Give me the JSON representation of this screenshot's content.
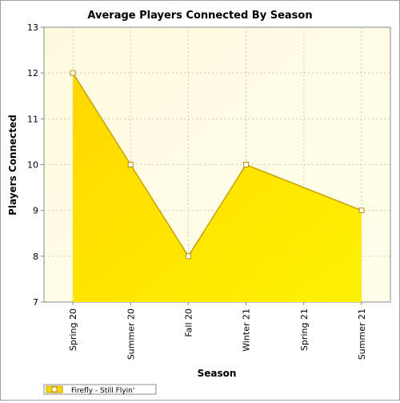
{
  "chart_data": {
    "type": "area",
    "title": "Average Players Connected By Season",
    "xlabel": "Season",
    "ylabel": "Players Connected",
    "categories": [
      "Spring 20",
      "Summer 20",
      "Fall 20",
      "Winter 21",
      "Spring 21",
      "Summer 21"
    ],
    "series": [
      {
        "name": "Firefly - Still Flyin'",
        "points": [
          {
            "x": "Spring 20",
            "y": 12
          },
          {
            "x": "Summer 20",
            "y": 10
          },
          {
            "x": "Fall 20",
            "y": 8
          },
          {
            "x": "Winter 21",
            "y": 10
          },
          {
            "x": "Summer 21",
            "y": 9
          }
        ]
      }
    ],
    "y_ticks": [
      7,
      8,
      9,
      10,
      11,
      12,
      13
    ],
    "ylim": [
      7,
      13
    ],
    "grid": true,
    "legend_position": "bottom-left",
    "colors": {
      "plot_bg_left": "#fffbe0",
      "plot_bg_right": "#ffffe9",
      "fill_top": "#ffd700",
      "fill_bottom": "#fff200",
      "line": "#c8a100",
      "marker_stroke": "#b89200",
      "marker_fill": "#ffffff",
      "grid": "#c8c8c8"
    }
  }
}
